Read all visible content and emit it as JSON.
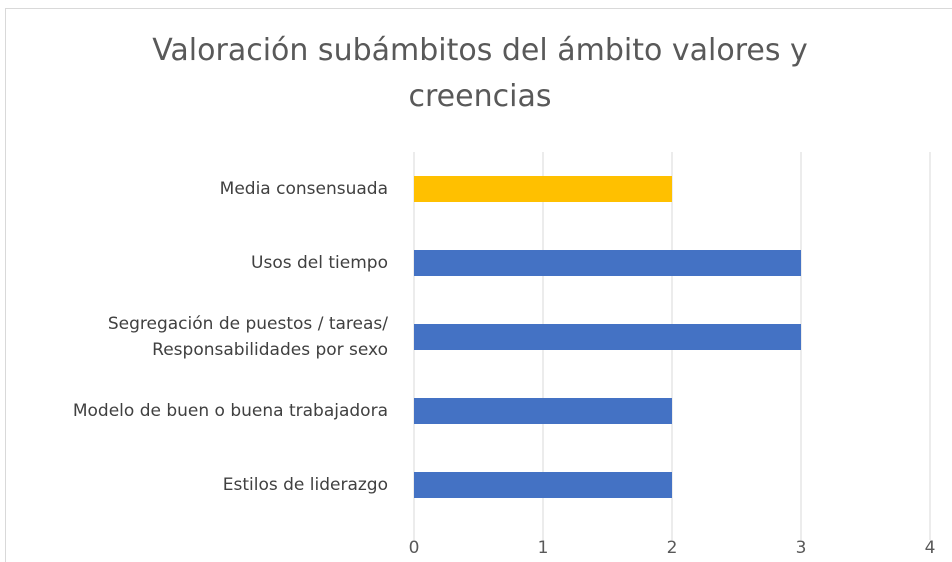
{
  "chart_data": {
    "type": "barh",
    "title": "Valoración subámbitos del ámbito valores y creencias",
    "categories": [
      "Media consensuada",
      "Usos del tiempo",
      "Segregación de puestos / tareas/ Responsabilidades por sexo",
      "Modelo de buen o buena trabajadora",
      "Estilos de liderazgo"
    ],
    "values": [
      2,
      3,
      3,
      2,
      2
    ],
    "colors": [
      "#ffc000",
      "#4472c4",
      "#4472c4",
      "#4472c4",
      "#4472c4"
    ],
    "xlim": [
      0,
      4
    ],
    "xticks": [
      0,
      1,
      2,
      3,
      4
    ],
    "grid": true
  }
}
